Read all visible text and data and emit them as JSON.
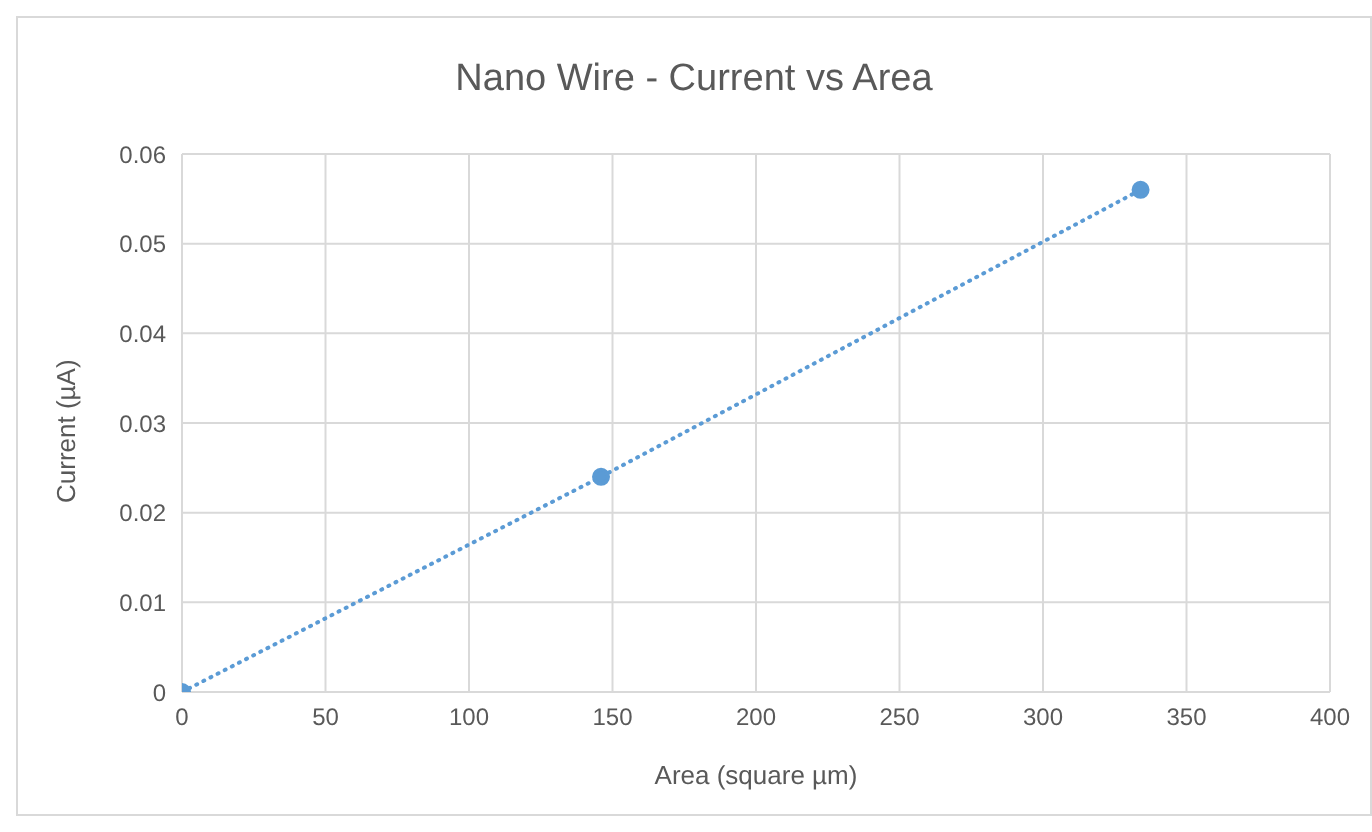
{
  "chart_data": {
    "type": "line",
    "title": "Nano Wire - Current vs Area",
    "xlabel": "Area (square µm)",
    "ylabel": "Current (µA)",
    "x": [
      0,
      146,
      334
    ],
    "series": [
      {
        "color": "#5b9bd5",
        "values": [
          0,
          0.024,
          0.056
        ]
      }
    ],
    "xlim": [
      0,
      400
    ],
    "xticks": [
      0,
      50,
      100,
      150,
      200,
      250,
      300,
      350,
      400
    ],
    "ylim": [
      0,
      0.06
    ],
    "yticks": [
      0,
      0.01,
      0.02,
      0.03,
      0.04,
      0.05,
      0.06
    ],
    "grid": true,
    "marker": "circle",
    "line_style": "dotted"
  }
}
